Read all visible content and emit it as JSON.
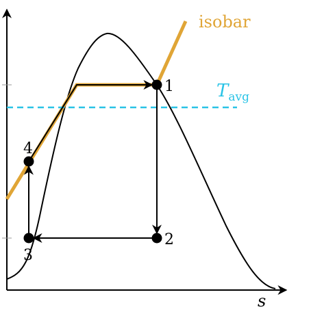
{
  "diagram": {
    "axis_label": "s",
    "points": [
      {
        "id": "p1",
        "label": "1"
      },
      {
        "id": "p2",
        "label": "2"
      },
      {
        "id": "p3",
        "label": "3"
      },
      {
        "id": "p4",
        "label": "4"
      }
    ],
    "isobar": {
      "label": "isobar",
      "color": "#e0a536"
    },
    "tavg": {
      "label_main": "T",
      "label_sub": "avg",
      "color": "#29c3e6"
    },
    "colors": {
      "curve": "#000000",
      "axis": "#000000"
    }
  }
}
